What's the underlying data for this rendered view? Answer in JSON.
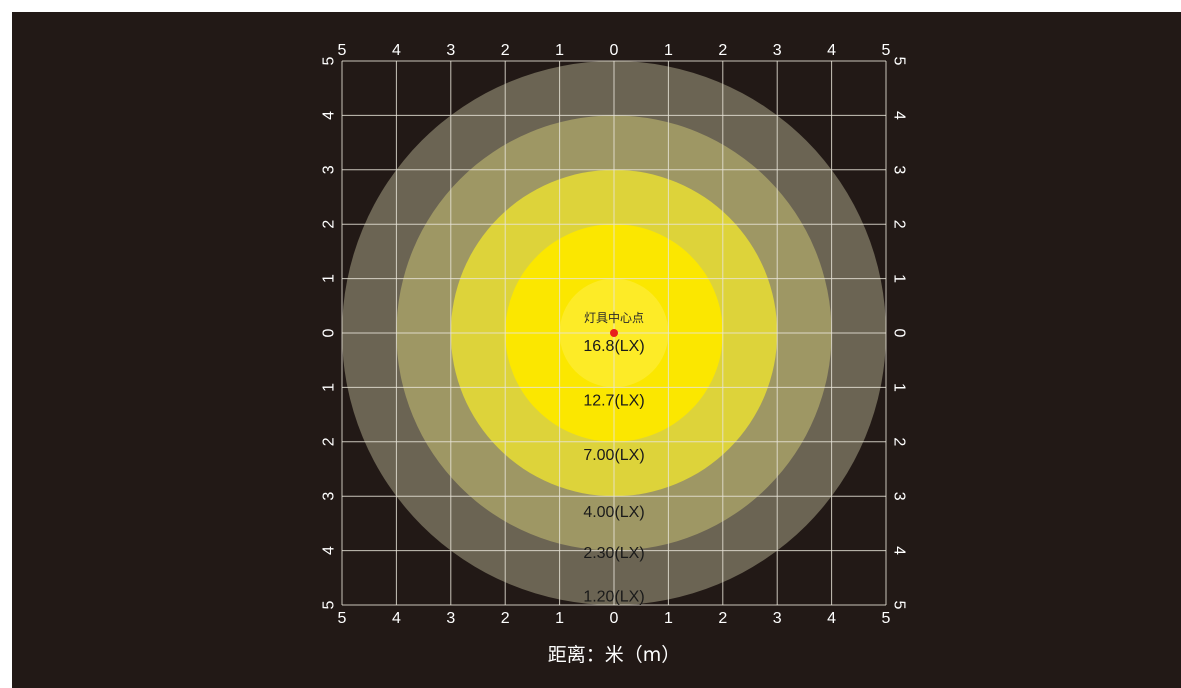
{
  "chart_data": {
    "type": "heatmap",
    "center_label": "灯具中心点",
    "xlabel": "距离：米（m）",
    "x_ticks": [
      "5",
      "4",
      "3",
      "2",
      "1",
      "0",
      "1",
      "2",
      "3",
      "4",
      "5"
    ],
    "y_ticks": [
      "5",
      "4",
      "3",
      "2",
      "1",
      "0",
      "1",
      "2",
      "3",
      "4",
      "5"
    ],
    "xlim": [
      -5,
      5
    ],
    "ylim": [
      -5,
      5
    ],
    "grid": true,
    "center": [
      0,
      0
    ],
    "rings": [
      {
        "radius_m": 5.0,
        "color": "#6b6453"
      },
      {
        "radius_m": 4.0,
        "color": "#9e9764"
      },
      {
        "radius_m": 3.0,
        "color": "#ddd33a"
      },
      {
        "radius_m": 2.0,
        "color": "#fbe700"
      },
      {
        "radius_m": 1.0,
        "color": "#fdeb27"
      }
    ],
    "labels": [
      {
        "text": "16.8(LX)",
        "x": 0,
        "y": -0.25
      },
      {
        "text": "12.7(LX)",
        "x": 0,
        "y": -1.25
      },
      {
        "text": "7.00(LX)",
        "x": 0,
        "y": -2.25
      },
      {
        "text": "4.00(LX)",
        "x": 0,
        "y": -3.3
      },
      {
        "text": "2.30(LX)",
        "x": 0,
        "y": -4.05
      },
      {
        "text": "1.20(LX)",
        "x": 0,
        "y": -4.85
      }
    ],
    "colors": {
      "background": "#221916",
      "grid": "#e8e4d8",
      "center_dot": "#e8201c",
      "tick_text": "#ffffff"
    }
  }
}
